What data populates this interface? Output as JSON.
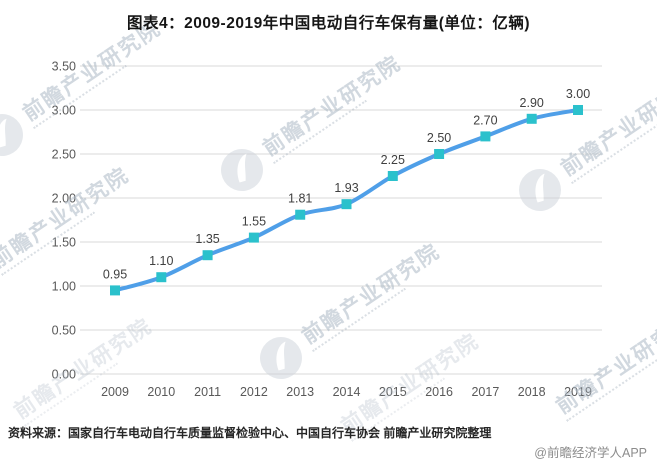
{
  "title": "图表4：2009-2019年中国电动自行车保有量(单位：亿辆)",
  "chart_data": {
    "type": "line",
    "title": "图表4：2009-2019年中国电动自行车保有量(单位：亿辆)",
    "unit": "亿辆",
    "categories": [
      "2009",
      "2010",
      "2011",
      "2012",
      "2013",
      "2014",
      "2015",
      "2016",
      "2017",
      "2018",
      "2019"
    ],
    "values": [
      0.95,
      1.1,
      1.35,
      1.55,
      1.81,
      1.93,
      2.25,
      2.5,
      2.7,
      2.9,
      3.0
    ],
    "point_labels": [
      "0.95",
      "1.10",
      "1.35",
      "1.55",
      "1.81",
      "1.93",
      "2.25",
      "2.50",
      "2.70",
      "2.90",
      "3.00"
    ],
    "xlabel": "",
    "ylabel": "",
    "ylim": [
      0,
      3.5
    ],
    "ytick_step": 0.5,
    "ytick_labels": [
      "0.00",
      "0.50",
      "1.00",
      "1.50",
      "2.00",
      "2.50",
      "3.00",
      "3.50"
    ],
    "grid": true,
    "legend": "none",
    "marker_shape": "square",
    "colors": {
      "line": "#4f9fe8",
      "marker": "#2bc1cc",
      "grid": "#d9d9d9",
      "axis_text": "#595959",
      "data_label": "#404040"
    }
  },
  "watermark": {
    "text": "前瞻产业研究院",
    "logo_icon": "qianzhan-bird-logo"
  },
  "footer": {
    "source": "资料来源：国家自行车电动自行车质量监督检验中心、中国自行车协会 前瞻产业研究院整理",
    "credit": "@前瞻经济学人APP"
  }
}
